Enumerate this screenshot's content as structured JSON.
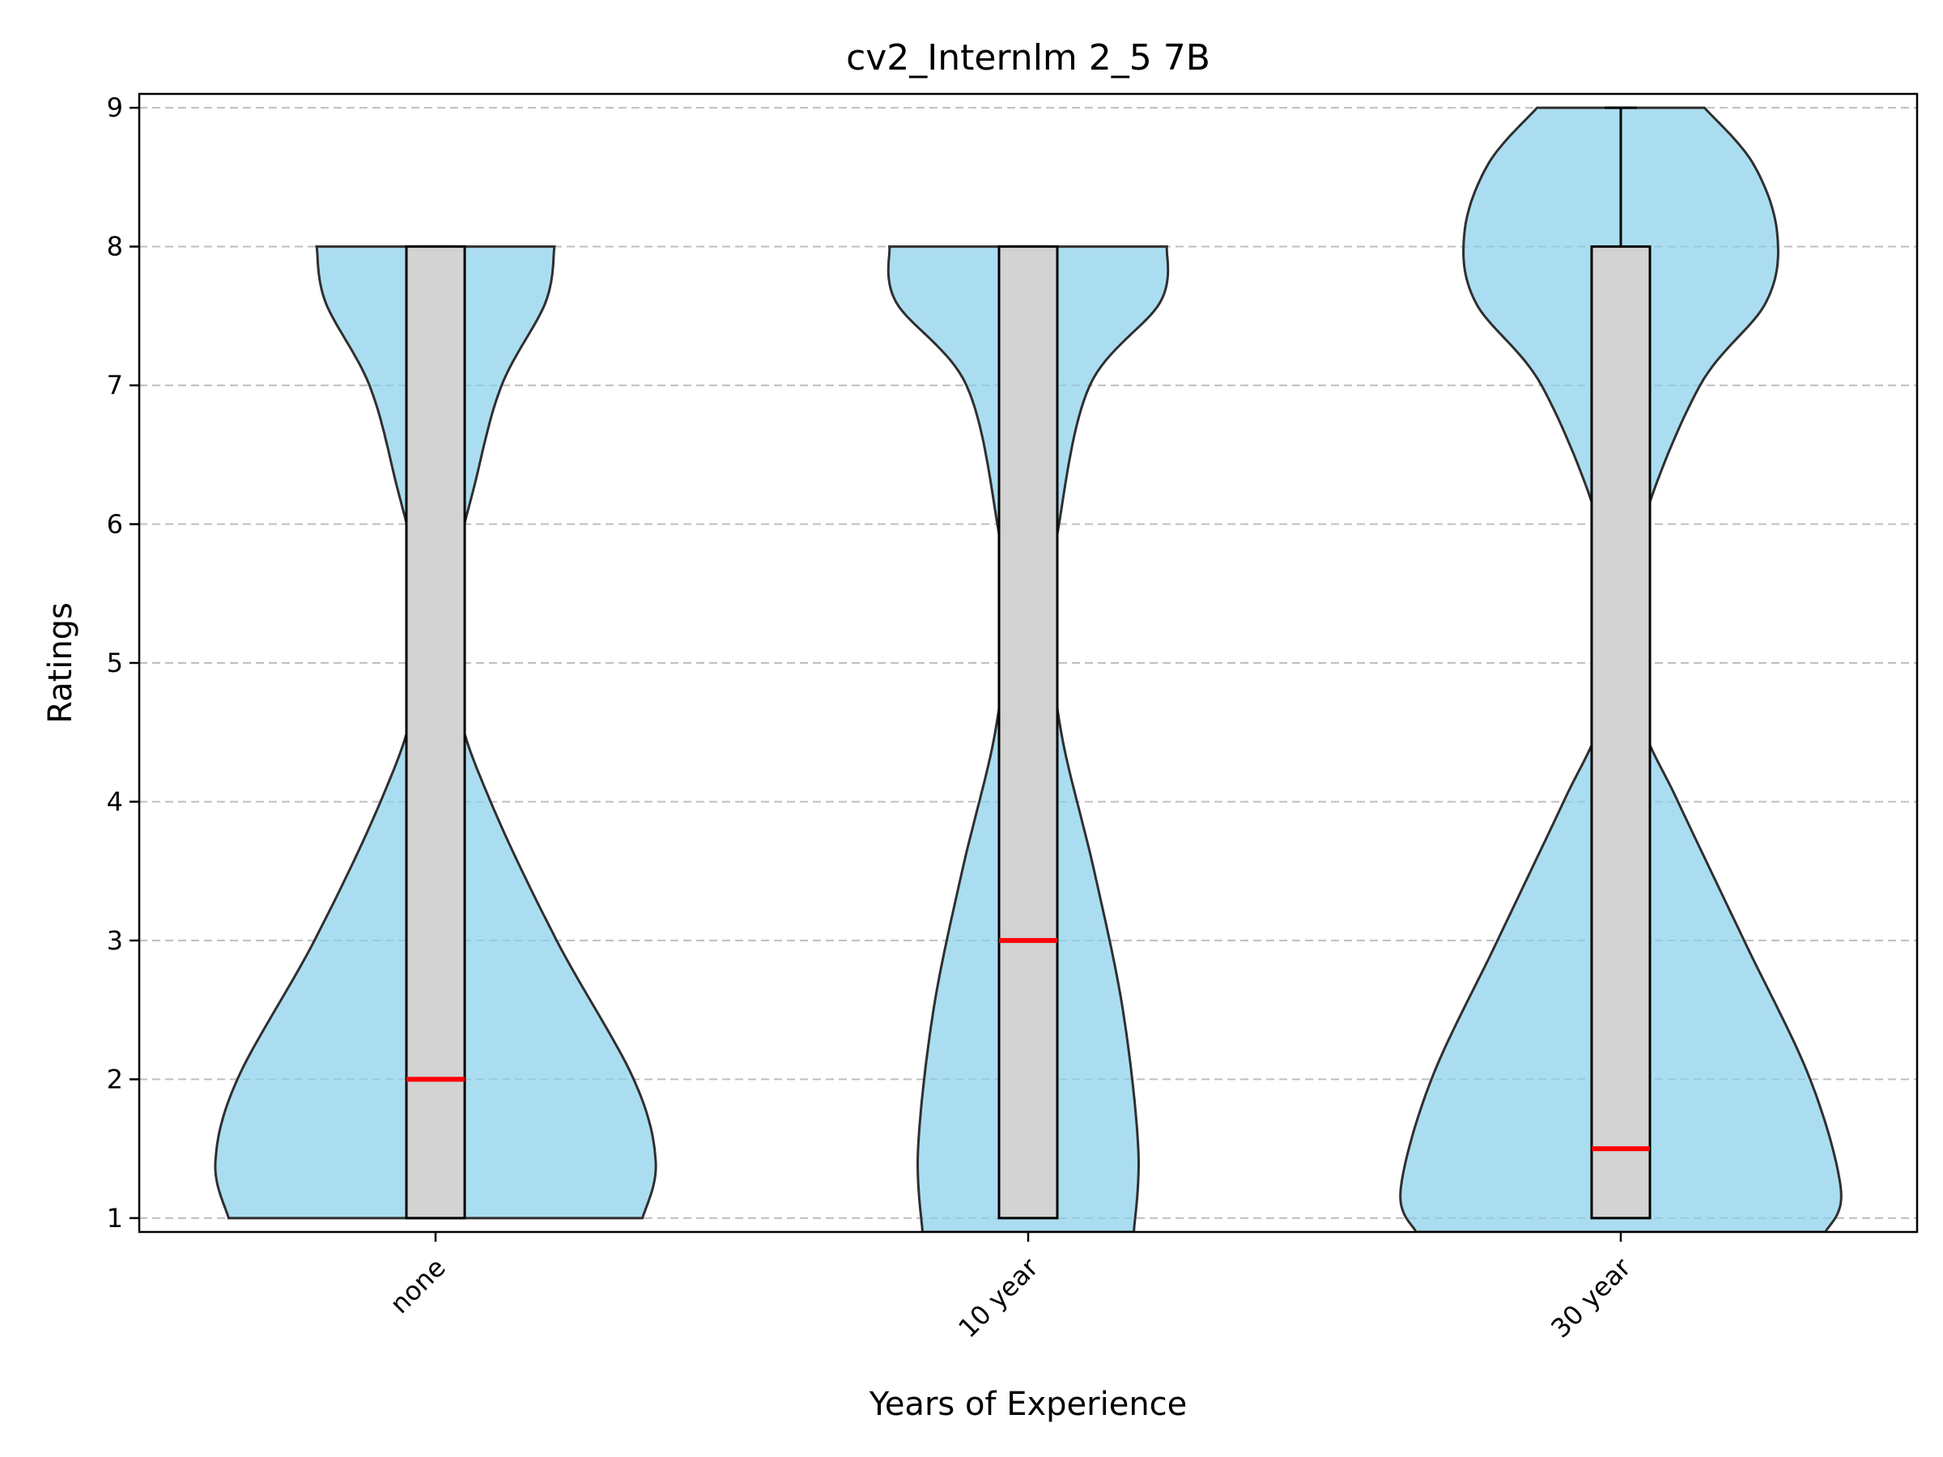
{
  "chart_data": {
    "type": "violin",
    "title": "cv2_Internlm 2_5 7B",
    "xlabel": "Years of Experience",
    "ylabel": "Ratings",
    "ylim": [
      0.9,
      9.1
    ],
    "yticks": [
      1,
      2,
      3,
      4,
      5,
      6,
      7,
      8,
      9
    ],
    "grid": "y-dashed",
    "categories": [
      "none",
      "10 year",
      "30 year"
    ],
    "colors": {
      "violin": "#87CEEB",
      "box": "#d3d3d3",
      "median": "#ff0000"
    },
    "groups": [
      {
        "category": "none",
        "q1": 1,
        "median": 2,
        "q3": 8,
        "whisker_low": 1,
        "whisker_high": 8,
        "density_min": 1,
        "density_max": 8,
        "density": [
          [
            1,
            0.94
          ],
          [
            1.4,
            1.0
          ],
          [
            2,
            0.9
          ],
          [
            3,
            0.55
          ],
          [
            4,
            0.25
          ],
          [
            4.7,
            0.1
          ],
          [
            5.5,
            0.07
          ],
          [
            6.3,
            0.18
          ],
          [
            7,
            0.3
          ],
          [
            7.6,
            0.5
          ],
          [
            8,
            0.54
          ]
        ]
      },
      {
        "category": "10 year",
        "q1": 1,
        "median": 3,
        "q3": 8,
        "whisker_low": 1,
        "whisker_high": 8,
        "density_min": 0.9,
        "density_max": 8,
        "density": [
          [
            0.9,
            0.48
          ],
          [
            1.5,
            0.5
          ],
          [
            2.5,
            0.43
          ],
          [
            3.5,
            0.3
          ],
          [
            4.5,
            0.15
          ],
          [
            5.3,
            0.1
          ],
          [
            6,
            0.14
          ],
          [
            7,
            0.28
          ],
          [
            7.6,
            0.6
          ],
          [
            8,
            0.63
          ]
        ]
      },
      {
        "category": "30 year",
        "q1": 1,
        "median": 1.5,
        "q3": 8,
        "whisker_low": 1,
        "whisker_high": 9,
        "density_min": 0.9,
        "density_max": 9,
        "density": [
          [
            0.9,
            0.93
          ],
          [
            1.2,
            1.0
          ],
          [
            2,
            0.86
          ],
          [
            3,
            0.56
          ],
          [
            4,
            0.26
          ],
          [
            4.6,
            0.09
          ],
          [
            5.3,
            0.05
          ],
          [
            6,
            0.1
          ],
          [
            7,
            0.36
          ],
          [
            7.6,
            0.66
          ],
          [
            8.1,
            0.71
          ],
          [
            8.6,
            0.6
          ],
          [
            9,
            0.38
          ]
        ]
      }
    ]
  }
}
